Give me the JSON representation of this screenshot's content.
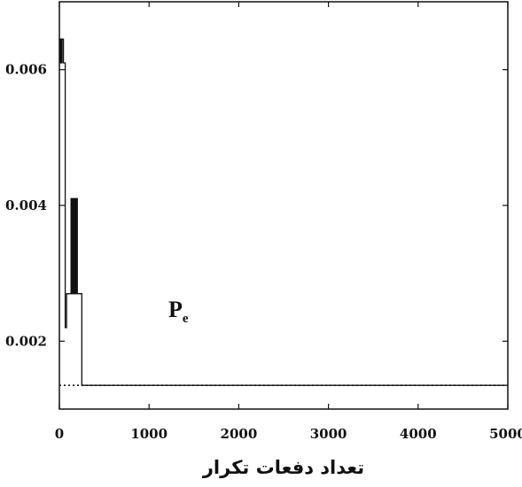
{
  "chart_data": {
    "type": "line",
    "title": "",
    "xlabel": "تعداد دفعات تکرار",
    "ylabel": "",
    "xlim": [
      0,
      5000
    ],
    "ylim": [
      0.001,
      0.007
    ],
    "xticks": [
      0,
      1000,
      2000,
      3000,
      4000,
      5000
    ],
    "xtick_labels": [
      "0",
      "1000",
      "2000",
      "3000",
      "4000",
      "5000"
    ],
    "yticks": [
      0.002,
      0.004,
      0.006
    ],
    "ytick_labels": [
      "0.002",
      "0.004",
      "0.006"
    ],
    "annotation": {
      "main": "P",
      "sub": "e"
    },
    "grid": false,
    "series": [
      {
        "line_style": "solid",
        "x": [
          0,
          10,
          10,
          20,
          20,
          30,
          30,
          45,
          45,
          55,
          55,
          65,
          65,
          80,
          80,
          90,
          90,
          100,
          100,
          110,
          110,
          120,
          120,
          130,
          130,
          140,
          140,
          150,
          150,
          160,
          160,
          170,
          170,
          180,
          180,
          190,
          190,
          200,
          200,
          210,
          210,
          220,
          220,
          230,
          230,
          240,
          240,
          250,
          250,
          5000
        ],
        "y": [
          0.0061,
          0.0061,
          0.00645,
          0.00645,
          0.0061,
          0.0061,
          0.00645,
          0.00645,
          0.0061,
          0.0061,
          0.0061,
          0.0061,
          0.0022,
          0.0022,
          0.0027,
          0.0027,
          0.0027,
          0.0027,
          0.0027,
          0.0027,
          0.0027,
          0.0027,
          0.0027,
          0.0027,
          0.0041,
          0.0041,
          0.0027,
          0.0027,
          0.0041,
          0.0041,
          0.0027,
          0.0027,
          0.0041,
          0.0041,
          0.0027,
          0.0027,
          0.0041,
          0.0041,
          0.0027,
          0.0027,
          0.0027,
          0.0027,
          0.0027,
          0.0027,
          0.0027,
          0.0027,
          0.0027,
          0.0027,
          0.00135,
          0.00135
        ]
      },
      {
        "line_style": "dotted",
        "x": [
          0,
          5000
        ],
        "y": [
          0.00135,
          0.00135
        ]
      }
    ]
  }
}
